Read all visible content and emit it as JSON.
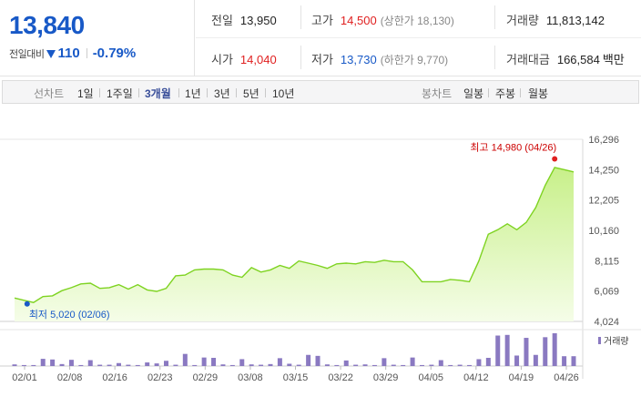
{
  "quote": {
    "price": "13,840",
    "change_label": "전일대비",
    "change_value": "110",
    "change_rate": "-0.79%",
    "prev_close_label": "전일",
    "prev_close": "13,950",
    "high_label": "고가",
    "high": "14,500",
    "upper_limit_text": "(상한가 18,130)",
    "volume_label": "거래량",
    "volume": "11,813,142",
    "open_label": "시가",
    "open": "14,040",
    "low_label": "저가",
    "low": "13,730",
    "lower_limit_text": "(하한가 9,770)",
    "amount_label": "거래대금",
    "amount": "166,584",
    "amount_unit": "백만",
    "colors": {
      "up": "#e02020",
      "down": "#1859c7"
    }
  },
  "toolbar": {
    "line_label": "선차트",
    "periods": [
      "1일",
      "1주일",
      "3개월",
      "1년",
      "3년",
      "5년",
      "10년"
    ],
    "active_period": "3개월",
    "candle_label": "봉차트",
    "candles": [
      "일봉",
      "주봉",
      "월봉"
    ]
  },
  "chart_data": {
    "type": "area",
    "x_ticks": [
      "02/01",
      "02/08",
      "02/16",
      "02/23",
      "02/29",
      "03/08",
      "03/15",
      "03/22",
      "03/29",
      "04/05",
      "04/12",
      "04/19",
      "04/26"
    ],
    "y_ticks": [
      "16,296",
      "14,250",
      "12,205",
      "10,160",
      "8,115",
      "6,069",
      "4,024"
    ],
    "ylim": [
      4024,
      16296
    ],
    "price": [
      5600,
      5450,
      5300,
      5700,
      5750,
      6100,
      6300,
      6550,
      6600,
      6250,
      6300,
      6500,
      6200,
      6500,
      6150,
      6050,
      6250,
      7100,
      7150,
      7500,
      7550,
      7550,
      7500,
      7150,
      7000,
      7650,
      7350,
      7500,
      7800,
      7600,
      8100,
      7950,
      7800,
      7600,
      7900,
      7950,
      7900,
      8050,
      8000,
      8150,
      8050,
      8050,
      7500,
      6700,
      6700,
      6700,
      6850,
      6800,
      6700,
      8100,
      9900,
      10200,
      10600,
      10200,
      10700,
      11700,
      13200,
      14400,
      14250,
      14100
    ],
    "volume": [
      0.05,
      0.03,
      0.03,
      0.22,
      0.2,
      0.06,
      0.19,
      0.03,
      0.18,
      0.04,
      0.04,
      0.09,
      0.04,
      0.03,
      0.11,
      0.08,
      0.16,
      0.04,
      0.37,
      0.03,
      0.26,
      0.25,
      0.05,
      0.03,
      0.21,
      0.05,
      0.04,
      0.06,
      0.24,
      0.07,
      0.04,
      0.34,
      0.31,
      0.05,
      0.03,
      0.17,
      0.04,
      0.05,
      0.03,
      0.24,
      0.04,
      0.03,
      0.26,
      0.03,
      0.04,
      0.18,
      0.03,
      0.04,
      0.03,
      0.21,
      0.25,
      0.93,
      0.95,
      0.32,
      0.86,
      0.34,
      0.88,
      1.0,
      0.3,
      0.3
    ],
    "high_marker": {
      "label": "최고 14,980 (04/26)",
      "value": 14980,
      "index": 57
    },
    "low_marker": {
      "label": "최저 5,020 (02/06)",
      "value": 5020,
      "index": 2
    },
    "volume_legend": "거래량",
    "colors": {
      "line": "#7ed321",
      "fill_top": "#c8f08a",
      "fill_bottom": "#f5fde8",
      "volume": "#8a79c1"
    }
  }
}
